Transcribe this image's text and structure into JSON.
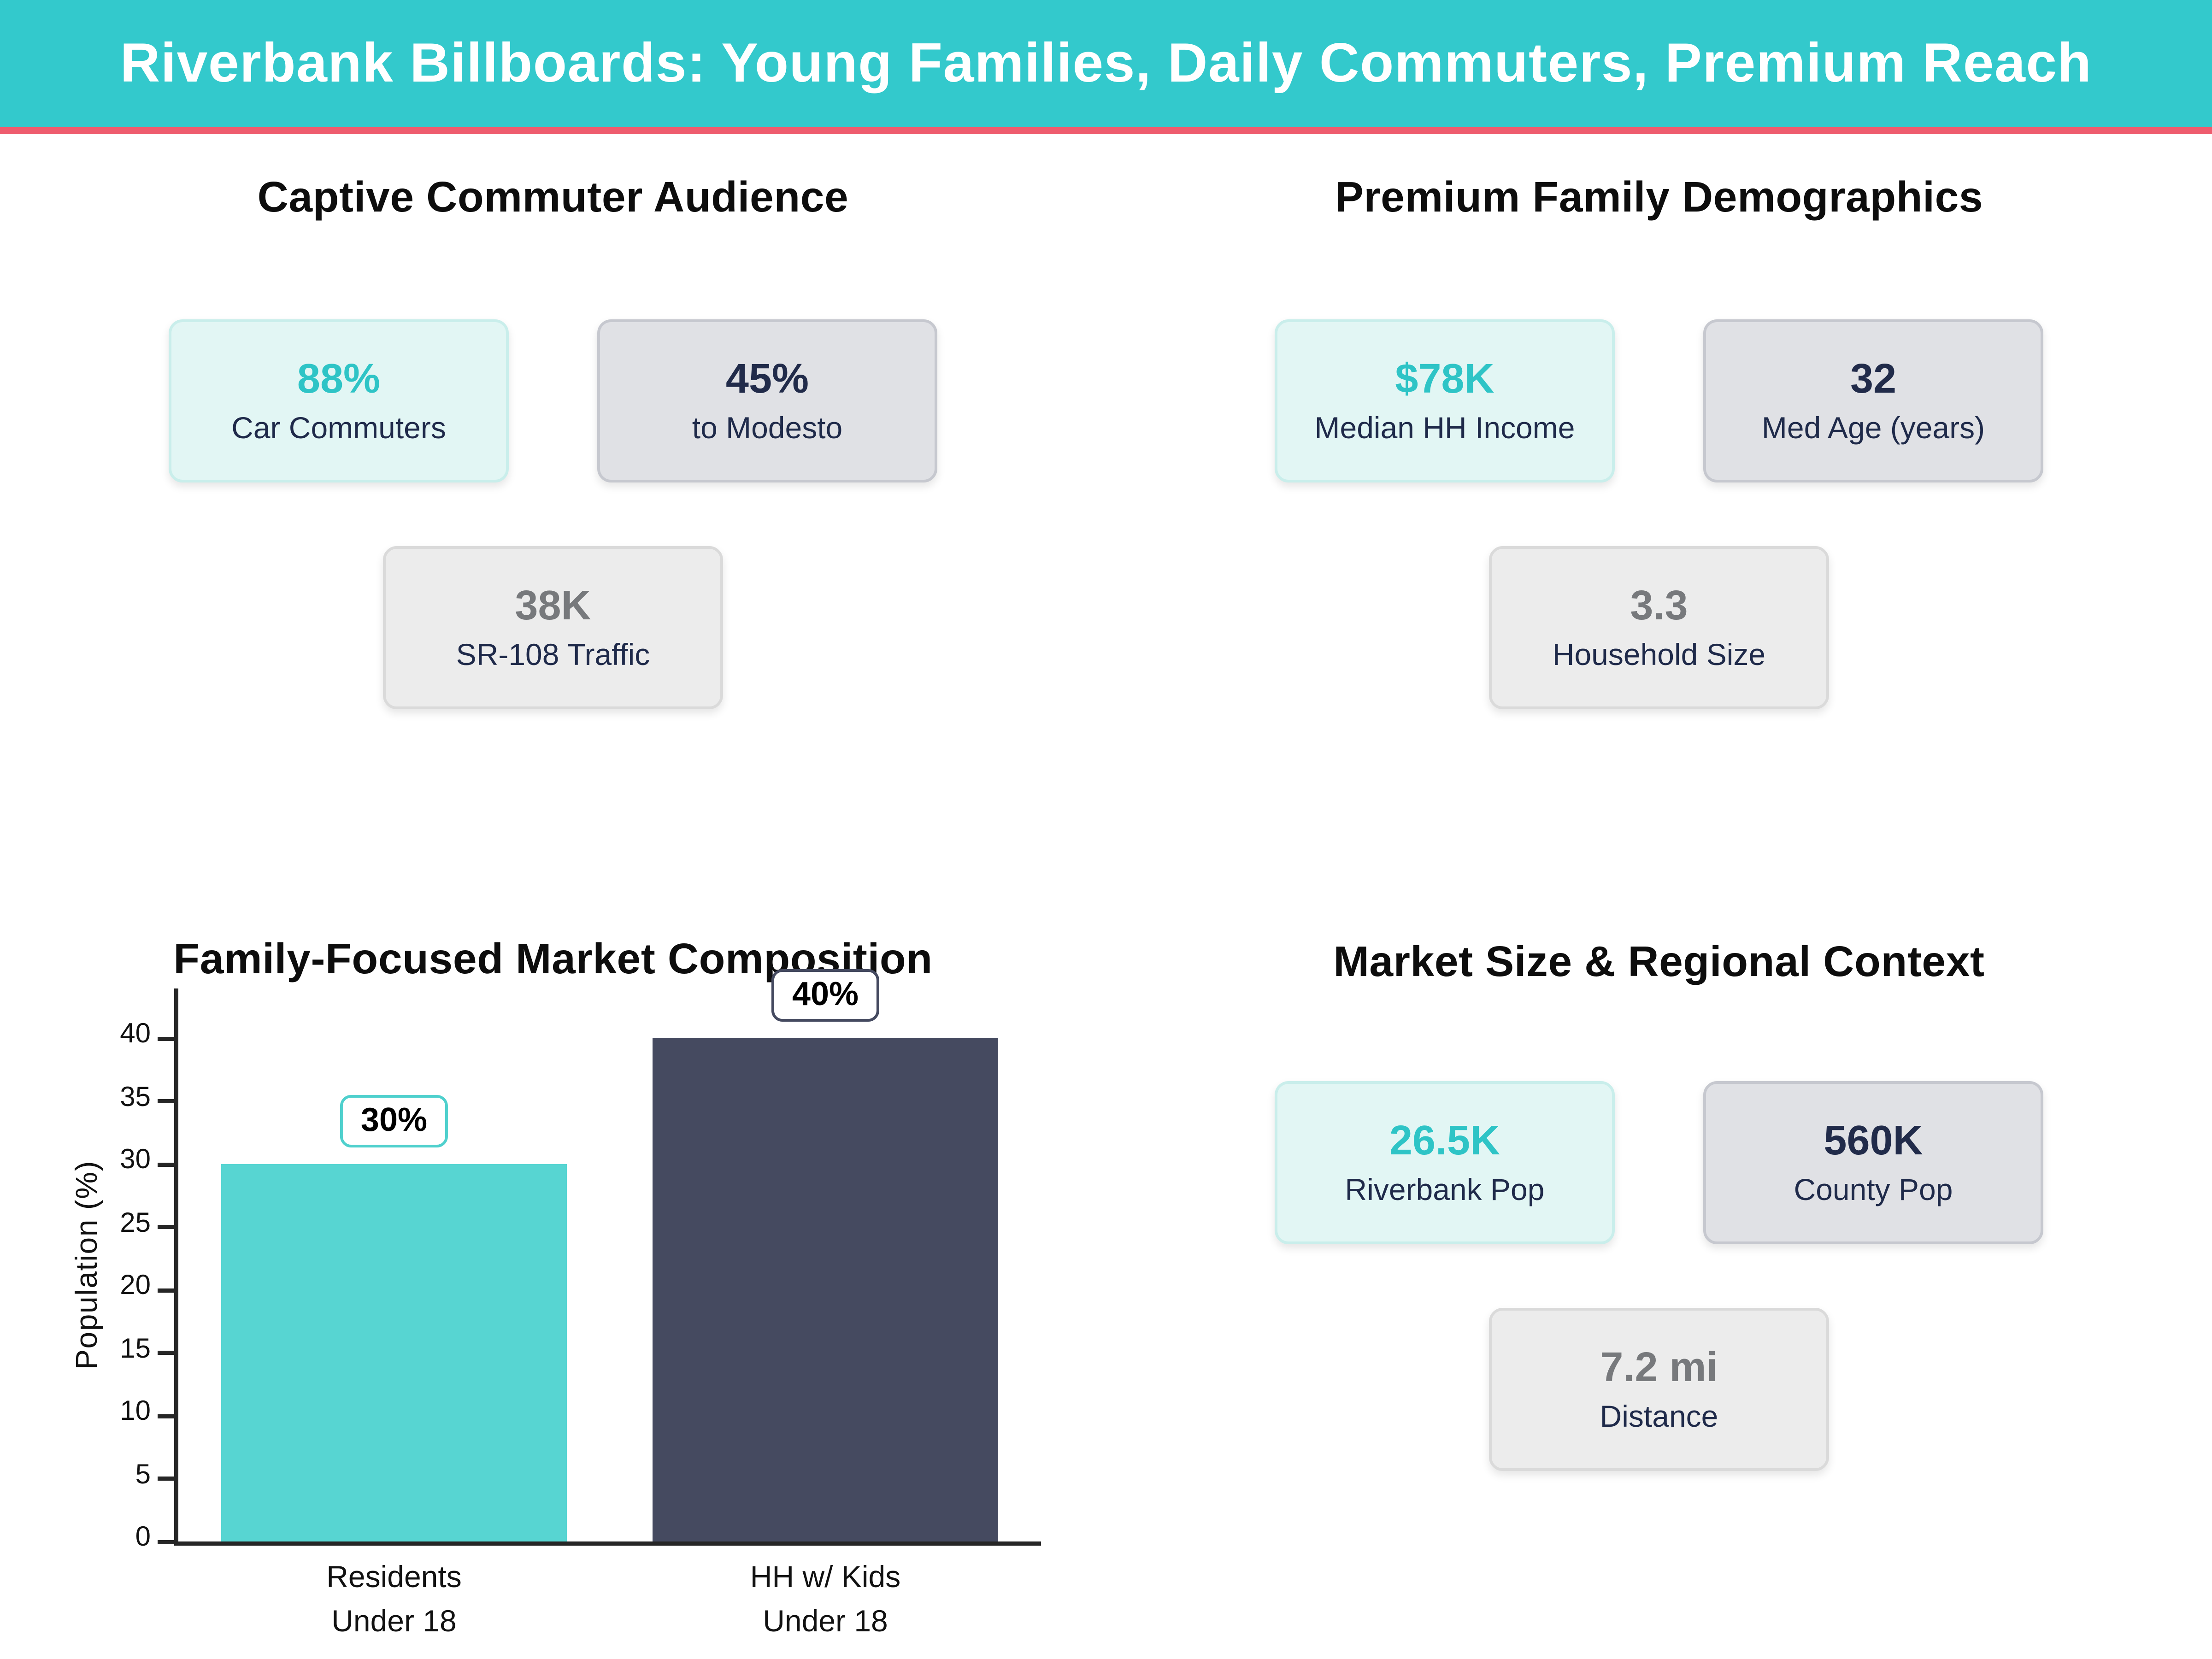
{
  "header": {
    "title": "Riverbank Billboards: Young Families, Daily Commuters, Premium Reach"
  },
  "colors": {
    "header_bg": "#33c9cc",
    "header_accent_line": "#ee5c6e",
    "teal_value": "#2ec4c6",
    "navy_value": "#212b4a",
    "gray_value": "#77797c",
    "teal_card_bg": "#e2f6f4",
    "gray_card_bg": "#e0e1e5",
    "light_card_bg": "#ececec"
  },
  "sections": {
    "commuter": {
      "title": "Captive Commuter Audience",
      "cards": [
        {
          "value": "88%",
          "label": "Car Commuters"
        },
        {
          "value": "45%",
          "label": "to Modesto"
        },
        {
          "value": "38K",
          "label": "SR-108 Traffic"
        }
      ]
    },
    "family": {
      "title": "Premium Family Demographics",
      "cards": [
        {
          "value": "$78K",
          "label": "Median HH Income"
        },
        {
          "value": "32",
          "label": "Med Age (years)"
        },
        {
          "value": "3.3",
          "label": "Household Size"
        }
      ]
    },
    "market": {
      "title": "Market Size & Regional Context",
      "cards": [
        {
          "value": "26.5K",
          "label": "Riverbank Pop"
        },
        {
          "value": "560K",
          "label": "County Pop"
        },
        {
          "value": "7.2 mi",
          "label": "Distance"
        }
      ]
    }
  },
  "chart_data": {
    "type": "bar",
    "title": "Family-Focused Market Composition",
    "categories": [
      "Residents\nUnder 18",
      "HH w/ Kids\nUnder 18"
    ],
    "values": [
      30,
      40
    ],
    "bar_labels": [
      "30%",
      "40%"
    ],
    "bar_colors": [
      "#57d5d2",
      "#454a60"
    ],
    "badge_border_colors": [
      "#4fd0cd",
      "#454a60"
    ],
    "xlabel": "",
    "ylabel": "Population (%)",
    "yticks": [
      0,
      5,
      10,
      15,
      20,
      25,
      30,
      35,
      40
    ],
    "ylim": [
      0,
      44
    ],
    "grid": false,
    "legend": false
  }
}
